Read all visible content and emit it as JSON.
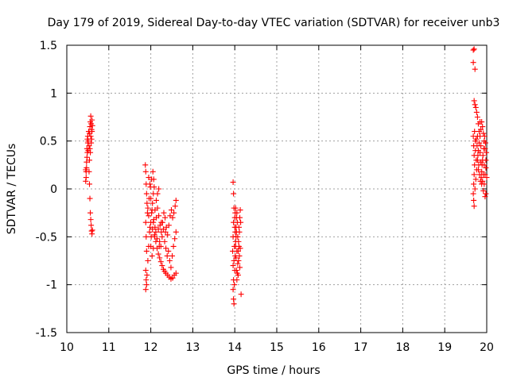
{
  "chart_data": {
    "type": "scatter",
    "title": "Day 179 of 2019, Sidereal Day-to-day VTEC variation (SDTVAR) for receiver unb3",
    "xlabel": "GPS time / hours",
    "ylabel": "SDTVAR / TECUs",
    "xlim": [
      10,
      20
    ],
    "ylim": [
      -1.5,
      1.5
    ],
    "xticks": [
      10,
      11,
      12,
      13,
      14,
      15,
      16,
      17,
      18,
      19,
      20
    ],
    "xtick_labels": [
      "10",
      "11",
      "12",
      "13",
      "14",
      "15",
      "16",
      "17",
      "18",
      "19",
      "20"
    ],
    "yticks": [
      -1.5,
      -1,
      -0.5,
      0,
      0.5,
      1,
      1.5
    ],
    "ytick_labels": [
      "-1.5",
      "-1",
      "-0.5",
      "0",
      "0.5",
      "1",
      "1.5"
    ],
    "grid": true,
    "marker": "+",
    "color": "#ff0000",
    "series": [
      {
        "name": "SDTVAR",
        "points": [
          [
            10.45,
            0.08
          ],
          [
            10.46,
            0.18
          ],
          [
            10.47,
            0.28
          ],
          [
            10.48,
            0.33
          ],
          [
            10.49,
            0.38
          ],
          [
            10.47,
            0.22
          ],
          [
            10.46,
            0.12
          ],
          [
            10.45,
            0.2
          ],
          [
            10.48,
            0.42
          ],
          [
            10.5,
            0.48
          ],
          [
            10.5,
            0.55
          ],
          [
            10.51,
            0.5
          ],
          [
            10.52,
            0.6
          ],
          [
            10.53,
            0.45
          ],
          [
            10.54,
            0.58
          ],
          [
            10.55,
            0.65
          ],
          [
            10.56,
            0.7
          ],
          [
            10.57,
            0.76
          ],
          [
            10.58,
            0.68
          ],
          [
            10.59,
            0.62
          ],
          [
            10.6,
            0.72
          ],
          [
            10.61,
            0.66
          ],
          [
            10.55,
            0.42
          ],
          [
            10.56,
            0.38
          ],
          [
            10.54,
            0.3
          ],
          [
            10.53,
            0.18
          ],
          [
            10.54,
            0.05
          ],
          [
            10.55,
            -0.1
          ],
          [
            10.56,
            -0.25
          ],
          [
            10.57,
            -0.32
          ],
          [
            10.58,
            -0.38
          ],
          [
            10.59,
            -0.44
          ],
          [
            10.6,
            -0.47
          ],
          [
            10.61,
            -0.43
          ],
          [
            10.49,
            0.52
          ],
          [
            10.51,
            0.4
          ],
          [
            10.57,
            0.55
          ],
          [
            10.58,
            0.48
          ],
          [
            10.59,
            0.52
          ],
          [
            10.6,
            0.6
          ],
          [
            11.87,
            0.25
          ],
          [
            11.88,
            0.18
          ],
          [
            11.89,
            0.05
          ],
          [
            11.9,
            -0.05
          ],
          [
            11.91,
            -0.15
          ],
          [
            11.92,
            -0.25
          ],
          [
            11.88,
            -0.35
          ],
          [
            11.89,
            -0.5
          ],
          [
            11.9,
            -0.65
          ],
          [
            11.88,
            -0.85
          ],
          [
            11.89,
            -0.95
          ],
          [
            11.88,
            -1.05
          ],
          [
            11.9,
            -1.0
          ],
          [
            11.91,
            -0.9
          ],
          [
            11.93,
            -0.75
          ],
          [
            11.95,
            -0.6
          ],
          [
            11.97,
            -0.45
          ],
          [
            12.0,
            -0.35
          ],
          [
            12.02,
            -0.25
          ],
          [
            12.04,
            -0.15
          ],
          [
            12.06,
            -0.05
          ],
          [
            12.08,
            0.02
          ],
          [
            12.05,
            0.18
          ],
          [
            12.07,
            0.1
          ],
          [
            11.95,
            0.12
          ],
          [
            11.98,
            0.05
          ],
          [
            12.0,
            -0.1
          ],
          [
            12.03,
            -0.22
          ],
          [
            12.06,
            -0.35
          ],
          [
            12.09,
            -0.48
          ],
          [
            12.12,
            -0.55
          ],
          [
            12.15,
            -0.62
          ],
          [
            12.18,
            -0.68
          ],
          [
            12.21,
            -0.72
          ],
          [
            12.24,
            -0.76
          ],
          [
            12.27,
            -0.8
          ],
          [
            12.3,
            -0.84
          ],
          [
            12.33,
            -0.86
          ],
          [
            12.36,
            -0.88
          ],
          [
            12.4,
            -0.9
          ],
          [
            12.44,
            -0.92
          ],
          [
            12.48,
            -0.94
          ],
          [
            12.52,
            -0.93
          ],
          [
            12.56,
            -0.9
          ],
          [
            12.6,
            -0.88
          ],
          [
            12.1,
            -0.4
          ],
          [
            12.13,
            -0.3
          ],
          [
            12.16,
            -0.2
          ],
          [
            12.19,
            -0.28
          ],
          [
            12.22,
            -0.38
          ],
          [
            12.25,
            -0.45
          ],
          [
            12.28,
            -0.35
          ],
          [
            12.31,
            -0.25
          ],
          [
            12.34,
            -0.3
          ],
          [
            12.37,
            -0.4
          ],
          [
            12.4,
            -0.48
          ],
          [
            12.43,
            -0.38
          ],
          [
            12.46,
            -0.28
          ],
          [
            12.49,
            -0.22
          ],
          [
            12.52,
            -0.3
          ],
          [
            12.55,
            -0.25
          ],
          [
            12.58,
            -0.18
          ],
          [
            12.6,
            -0.12
          ],
          [
            12.0,
            -0.6
          ],
          [
            12.03,
            -0.7
          ],
          [
            12.06,
            -0.62
          ],
          [
            12.09,
            -0.5
          ],
          [
            12.12,
            -0.45
          ],
          [
            12.15,
            -0.52
          ],
          [
            12.18,
            -0.42
          ],
          [
            12.21,
            -0.55
          ],
          [
            12.24,
            -0.6
          ],
          [
            12.27,
            -0.5
          ],
          [
            12.3,
            -0.42
          ],
          [
            12.33,
            -0.55
          ],
          [
            12.36,
            -0.62
          ],
          [
            12.39,
            -0.7
          ],
          [
            12.42,
            -0.65
          ],
          [
            12.45,
            -0.75
          ],
          [
            12.48,
            -0.82
          ],
          [
            12.51,
            -0.7
          ],
          [
            12.54,
            -0.6
          ],
          [
            12.57,
            -0.52
          ],
          [
            12.6,
            -0.45
          ],
          [
            11.95,
            -0.28
          ],
          [
            11.98,
            -0.4
          ],
          [
            12.01,
            -0.5
          ],
          [
            12.04,
            -0.42
          ],
          [
            12.07,
            -0.32
          ],
          [
            12.1,
            -0.22
          ],
          [
            12.13,
            -0.12
          ],
          [
            12.16,
            -0.05
          ],
          [
            12.19,
            0.0
          ],
          [
            11.93,
            -0.2
          ],
          [
            11.96,
            -0.1
          ],
          [
            11.99,
            0.02
          ],
          [
            12.02,
            0.1
          ],
          [
            12.2,
            -0.6
          ],
          [
            12.25,
            -0.35
          ],
          [
            12.35,
            -0.45
          ],
          [
            13.96,
            0.07
          ],
          [
            13.97,
            -0.05
          ],
          [
            13.98,
            -0.2
          ],
          [
            13.97,
            -0.35
          ],
          [
            13.96,
            -0.5
          ],
          [
            13.95,
            -0.65
          ],
          [
            13.96,
            -0.8
          ],
          [
            13.97,
            -0.95
          ],
          [
            13.96,
            -1.05
          ],
          [
            13.97,
            -1.15
          ],
          [
            13.98,
            -1.2
          ],
          [
            13.99,
            -1.0
          ],
          [
            14.0,
            -0.85
          ],
          [
            14.01,
            -0.7
          ],
          [
            14.02,
            -0.55
          ],
          [
            14.03,
            -0.4
          ],
          [
            14.04,
            -0.3
          ],
          [
            14.05,
            -0.25
          ],
          [
            14.06,
            -0.35
          ],
          [
            14.07,
            -0.5
          ],
          [
            14.08,
            -0.65
          ],
          [
            14.09,
            -0.75
          ],
          [
            14.1,
            -0.6
          ],
          [
            14.11,
            -0.45
          ],
          [
            14.12,
            -0.3
          ],
          [
            14.13,
            -0.22
          ],
          [
            14.14,
            -0.35
          ],
          [
            14.15,
            -1.1
          ],
          [
            14.0,
            -0.3
          ],
          [
            14.01,
            -0.45
          ],
          [
            14.02,
            -0.6
          ],
          [
            14.03,
            -0.72
          ],
          [
            14.04,
            -0.85
          ],
          [
            14.05,
            -0.95
          ],
          [
            14.06,
            -0.88
          ],
          [
            14.07,
            -0.78
          ],
          [
            14.08,
            -0.9
          ],
          [
            14.09,
            -0.55
          ],
          [
            14.1,
            -0.4
          ],
          [
            14.11,
            -0.7
          ],
          [
            14.12,
            -0.82
          ],
          [
            14.13,
            -0.62
          ],
          [
            13.99,
            -0.6
          ],
          [
            13.98,
            -0.75
          ],
          [
            14.0,
            -0.4
          ],
          [
            14.01,
            -0.25
          ],
          [
            14.02,
            -0.2
          ],
          [
            14.03,
            -0.5
          ],
          [
            14.04,
            -0.45
          ],
          [
            14.05,
            -0.65
          ],
          [
            19.68,
            1.45
          ],
          [
            19.7,
            1.46
          ],
          [
            19.68,
            1.32
          ],
          [
            19.72,
            1.25
          ],
          [
            19.7,
            0.92
          ],
          [
            19.72,
            0.88
          ],
          [
            19.74,
            0.85
          ],
          [
            19.76,
            0.8
          ],
          [
            19.78,
            0.75
          ],
          [
            19.8,
            0.68
          ],
          [
            19.82,
            0.6
          ],
          [
            19.84,
            0.55
          ],
          [
            19.86,
            0.62
          ],
          [
            19.88,
            0.7
          ],
          [
            19.9,
            0.65
          ],
          [
            19.92,
            0.58
          ],
          [
            19.94,
            0.5
          ],
          [
            19.96,
            0.42
          ],
          [
            19.98,
            0.3
          ],
          [
            19.68,
            0.55
          ],
          [
            19.69,
            0.45
          ],
          [
            19.7,
            0.35
          ],
          [
            19.71,
            0.25
          ],
          [
            19.7,
            0.15
          ],
          [
            19.69,
            0.05
          ],
          [
            19.68,
            -0.05
          ],
          [
            19.69,
            -0.12
          ],
          [
            19.7,
            -0.18
          ],
          [
            19.72,
            0.0
          ],
          [
            19.74,
            0.1
          ],
          [
            19.76,
            0.2
          ],
          [
            19.78,
            0.3
          ],
          [
            19.8,
            0.4
          ],
          [
            19.82,
            0.48
          ],
          [
            19.84,
            0.38
          ],
          [
            19.86,
            0.28
          ],
          [
            19.88,
            0.18
          ],
          [
            19.9,
            0.08
          ],
          [
            19.92,
            -0.02
          ],
          [
            19.94,
            0.05
          ],
          [
            19.96,
            0.15
          ],
          [
            19.98,
            0.22
          ],
          [
            20.0,
            0.12
          ],
          [
            19.96,
            -0.08
          ],
          [
            19.98,
            -0.05
          ],
          [
            19.75,
            0.52
          ],
          [
            19.77,
            0.45
          ],
          [
            19.79,
            0.35
          ],
          [
            19.81,
            0.25
          ],
          [
            19.83,
            0.15
          ],
          [
            19.85,
            0.08
          ],
          [
            19.87,
            0.12
          ],
          [
            19.89,
            0.25
          ],
          [
            19.91,
            0.35
          ],
          [
            19.93,
            0.42
          ],
          [
            19.95,
            0.55
          ],
          [
            19.97,
            0.48
          ],
          [
            19.99,
            0.38
          ],
          [
            19.73,
            0.4
          ],
          [
            19.75,
            0.3
          ],
          [
            19.78,
            0.55
          ],
          [
            19.8,
            0.2
          ],
          [
            19.84,
            0.7
          ],
          [
            19.86,
            0.45
          ],
          [
            19.9,
            0.3
          ],
          [
            19.92,
            0.15
          ],
          [
            19.94,
            0.25
          ],
          [
            19.71,
            0.6
          ],
          [
            19.73,
            0.5
          ],
          [
            19.88,
            0.05
          ]
        ]
      }
    ]
  }
}
